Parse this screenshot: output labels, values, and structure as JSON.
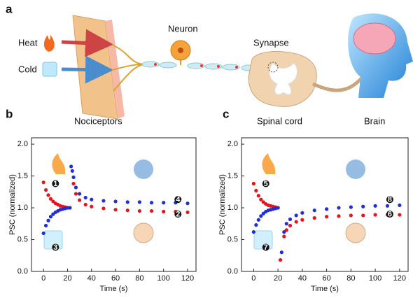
{
  "panels": [
    "a",
    "b",
    "c"
  ],
  "diagram": {
    "heat": "Heat",
    "cold": "Cold",
    "neuron": "Neuron",
    "synapse": "Synapse",
    "nociceptors": "Nociceptors",
    "spinal_cord": "Spinal cord",
    "brain": "Brain"
  },
  "chart_data": [
    {
      "type": "scatter",
      "xlabel": "Time (s)",
      "ylabel": "PSC (normalized)",
      "xlim": [
        -10,
        127
      ],
      "xticks": [
        0,
        20,
        40,
        60,
        80,
        100,
        120
      ],
      "ylim": [
        0,
        2.1
      ],
      "yticks": [
        {
          "value": 0,
          "label": "0.0"
        },
        0.5,
        {
          "value": 1,
          "label": "1.0"
        },
        1.5,
        {
          "value": 2,
          "label": "2.0"
        }
      ],
      "annotations": [
        "1",
        "2",
        "3",
        "4"
      ],
      "series": [
        {
          "name": "heat",
          "color": "#e8141c",
          "x": [
            0,
            2,
            4,
            6,
            8,
            10,
            12,
            14,
            16,
            18,
            20,
            22,
            25,
            27,
            30,
            35,
            40,
            50,
            60,
            70,
            80,
            90,
            100,
            110,
            120
          ],
          "values": [
            1.4,
            1.28,
            1.2,
            1.14,
            1.1,
            1.07,
            1.05,
            1.03,
            1.02,
            1.01,
            1.0,
            1.0,
            1.38,
            1.22,
            1.12,
            1.05,
            1.02,
            0.99,
            0.97,
            0.96,
            0.95,
            0.95,
            0.94,
            0.94,
            0.93
          ]
        },
        {
          "name": "cold",
          "color": "#1f2fd6",
          "x": [
            0,
            2,
            4,
            6,
            8,
            10,
            12,
            14,
            16,
            18,
            20,
            22,
            23,
            24,
            25,
            27,
            30,
            35,
            40,
            50,
            60,
            70,
            80,
            90,
            100,
            110,
            120
          ],
          "values": [
            0.6,
            0.72,
            0.8,
            0.86,
            0.9,
            0.93,
            0.95,
            0.97,
            0.98,
            0.99,
            1.0,
            1.0,
            1.65,
            1.58,
            1.48,
            1.32,
            1.22,
            1.16,
            1.13,
            1.11,
            1.1,
            1.09,
            1.09,
            1.08,
            1.08,
            1.08,
            1.07
          ]
        }
      ]
    },
    {
      "type": "scatter",
      "xlabel": "Time (s)",
      "ylabel": "PSC (normalized)",
      "xlim": [
        -10,
        127
      ],
      "xticks": [
        0,
        20,
        40,
        60,
        80,
        100,
        120
      ],
      "ylim": [
        0,
        2.1
      ],
      "yticks": [
        {
          "value": 0,
          "label": "0.0"
        },
        0.5,
        {
          "value": 1,
          "label": "1.0"
        },
        1.5,
        {
          "value": 2,
          "label": "2.0"
        }
      ],
      "annotations": [
        "5",
        "6",
        "7",
        "8"
      ],
      "series": [
        {
          "name": "heat",
          "color": "#e8141c",
          "x": [
            0,
            2,
            4,
            6,
            8,
            10,
            12,
            14,
            16,
            18,
            20,
            22,
            25,
            27,
            30,
            35,
            40,
            50,
            60,
            70,
            80,
            90,
            100,
            110,
            120
          ],
          "values": [
            1.38,
            1.27,
            1.19,
            1.13,
            1.09,
            1.06,
            1.04,
            1.03,
            1.02,
            1.01,
            1.0,
            0.18,
            0.55,
            0.65,
            0.72,
            0.78,
            0.81,
            0.84,
            0.86,
            0.87,
            0.88,
            0.88,
            0.89,
            0.89,
            0.89
          ]
        },
        {
          "name": "cold",
          "color": "#1f2fd6",
          "x": [
            0,
            2,
            4,
            6,
            8,
            10,
            12,
            14,
            16,
            18,
            20,
            23,
            25,
            27,
            30,
            35,
            40,
            50,
            60,
            70,
            80,
            90,
            100,
            110,
            120
          ],
          "values": [
            0.62,
            0.73,
            0.81,
            0.87,
            0.91,
            0.94,
            0.96,
            0.97,
            0.98,
            0.99,
            1.0,
            0.3,
            0.62,
            0.75,
            0.82,
            0.88,
            0.92,
            0.96,
            0.98,
            1.0,
            1.01,
            1.02,
            1.03,
            1.03,
            1.04
          ]
        }
      ]
    }
  ]
}
